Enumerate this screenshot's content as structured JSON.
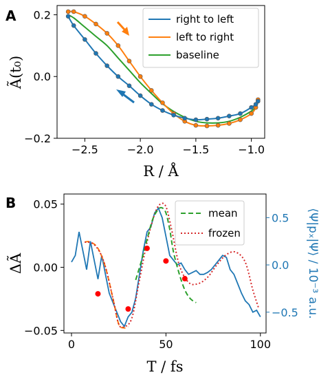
{
  "colors": {
    "blue": "#1f77b4",
    "orange": "#ff7f0e",
    "green": "#2ca02c",
    "red": "#d62728"
  },
  "panel_a": {
    "label": "A",
    "xlabel": "R / Å",
    "ylabel": "Ã(t₀)"
  },
  "panel_b": {
    "label": "B",
    "xlabel": "T / fs",
    "ylabel": "ΔÃ",
    "ylabel_right": "⟨Ψ|pₓ|Ψ⟩ / 10⁻³ a.u."
  },
  "chart_data": [
    {
      "type": "line",
      "panel": "A",
      "xlabel": "R / Å",
      "ylabel": "Ã(t₀)",
      "xlim": [
        -2.75,
        -0.88
      ],
      "ylim": [
        -0.2,
        0.23
      ],
      "xticks": [
        -2.5,
        -2.0,
        -1.5,
        -1.0
      ],
      "xtick_labels": [
        "−2.5",
        "−2.0",
        "−1.5",
        "−1.0"
      ],
      "yticks": [
        -0.2,
        0.0,
        0.2
      ],
      "ytick_labels": [
        "−0.2",
        "0.0",
        "0.2"
      ],
      "grid": false,
      "legend_position": "top-right",
      "series": [
        {
          "name": "right to left",
          "color": "#1f77b4",
          "x": [
            -0.94,
            -0.96,
            -1.0,
            -1.1,
            -1.2,
            -1.3,
            -1.4,
            -1.5,
            -1.6,
            -1.7,
            -1.8,
            -1.9,
            -2.0,
            -2.1,
            -2.2,
            -2.3,
            -2.4,
            -2.5,
            -2.6,
            -2.65
          ],
          "y": [
            -0.08,
            -0.09,
            -0.1,
            -0.12,
            -0.128,
            -0.135,
            -0.138,
            -0.14,
            -0.135,
            -0.125,
            -0.11,
            -0.09,
            -0.062,
            -0.03,
            0.0,
            0.035,
            0.075,
            0.12,
            0.165,
            0.195
          ]
        },
        {
          "name": "left to right",
          "color": "#ff7f0e",
          "x": [
            -2.65,
            -2.6,
            -2.5,
            -2.4,
            -2.3,
            -2.2,
            -2.1,
            -2.0,
            -1.9,
            -1.8,
            -1.7,
            -1.6,
            -1.5,
            -1.4,
            -1.3,
            -1.2,
            -1.1,
            -1.0,
            -0.96,
            -0.94
          ],
          "y": [
            0.21,
            0.21,
            0.195,
            0.17,
            0.14,
            0.1,
            0.05,
            0.0,
            -0.045,
            -0.085,
            -0.12,
            -0.145,
            -0.158,
            -0.16,
            -0.158,
            -0.152,
            -0.14,
            -0.12,
            -0.1,
            -0.075
          ]
        },
        {
          "name": "baseline",
          "color": "#2ca02c",
          "x": [
            -2.65,
            -2.6,
            -2.5,
            -2.4,
            -2.3,
            -2.2,
            -2.1,
            -2.0,
            -1.9,
            -1.8,
            -1.7,
            -1.6,
            -1.5,
            -1.4,
            -1.3,
            -1.2,
            -1.1,
            -1.0,
            -0.96
          ],
          "y": [
            0.2,
            0.19,
            0.16,
            0.13,
            0.1,
            0.06,
            0.02,
            -0.02,
            -0.055,
            -0.088,
            -0.113,
            -0.132,
            -0.145,
            -0.15,
            -0.15,
            -0.145,
            -0.132,
            -0.112,
            -0.1
          ]
        }
      ]
    },
    {
      "type": "line",
      "panel": "B",
      "xlabel": "T / fs",
      "ylabel": "ΔÃ",
      "ylabel_right": "⟨Ψ|pₓ|Ψ⟩ / 10⁻³ a.u.",
      "xlim": [
        -4,
        103
      ],
      "ylim": [
        -0.052,
        0.058
      ],
      "ylim_right": [
        -0.72,
        0.75
      ],
      "xticks": [
        0,
        50,
        100
      ],
      "xtick_labels": [
        "0",
        "50",
        "100"
      ],
      "yticks": [
        -0.05,
        0.0,
        0.05
      ],
      "ytick_labels": [
        "−0.05",
        "0.00",
        "0.05"
      ],
      "yticks_right": [
        -0.5,
        0.0,
        0.5
      ],
      "ytick_labels_right": [
        "−0.5",
        "0.0",
        "0.5"
      ],
      "grid": false,
      "legend_position": "top-right",
      "series": [
        {
          "name": "mean",
          "style": "dashed",
          "color": "#2ca02c",
          "x": [
            34,
            37,
            40,
            43,
            46,
            48,
            50,
            52,
            54,
            57,
            60,
            63,
            66
          ],
          "y": [
            -0.01,
            0.005,
            0.022,
            0.038,
            0.046,
            0.047,
            0.043,
            0.03,
            0.012,
            -0.005,
            -0.018,
            -0.025,
            -0.028
          ]
        },
        {
          "name": "frozen",
          "style": "dotted",
          "color": "#d62728",
          "x": [
            7,
            12,
            17,
            22,
            25,
            28,
            32,
            36,
            40,
            44,
            47,
            50,
            53,
            57,
            62,
            67,
            72,
            77,
            82,
            87,
            92,
            96,
            99
          ],
          "y": [
            0.02,
            0.018,
            0.005,
            -0.025,
            -0.045,
            -0.047,
            -0.04,
            -0.01,
            0.02,
            0.042,
            0.05,
            0.048,
            0.03,
            0.002,
            -0.012,
            -0.013,
            -0.008,
            0.002,
            0.01,
            0.012,
            0.004,
            -0.018,
            -0.032
          ]
        },
        {
          "name": "",
          "style": "dashed",
          "color": "#ff7f0e",
          "x": [
            7,
            10,
            14,
            18,
            22,
            25,
            28,
            30
          ],
          "y": [
            0.02,
            0.02,
            0.015,
            0.0,
            -0.025,
            -0.045,
            -0.048,
            -0.047
          ]
        },
        {
          "name": "",
          "style": "points",
          "color": "#ff0000",
          "x": [
            14,
            30,
            40,
            50,
            60
          ],
          "y": [
            -0.021,
            -0.033,
            0.015,
            0.005,
            -0.009
          ]
        },
        {
          "name": "",
          "style": "solid",
          "axis": "right",
          "color": "#1f77b4",
          "x": [
            0,
            2,
            4,
            6,
            8,
            10,
            12,
            14,
            16,
            18,
            20,
            22,
            24,
            26,
            28,
            30,
            32,
            34,
            36,
            38,
            40,
            42,
            44,
            46,
            48,
            50,
            52,
            54,
            56,
            58,
            60,
            62,
            64,
            66,
            68,
            70,
            72,
            74,
            76,
            78,
            80,
            82,
            84,
            86,
            88,
            90,
            92,
            94,
            96,
            98,
            100
          ],
          "y": [
            0.03,
            0.1,
            0.35,
            0.15,
            -0.05,
            0.25,
            0.05,
            -0.15,
            0.1,
            -0.1,
            -0.3,
            -0.4,
            -0.5,
            -0.6,
            -0.65,
            -0.55,
            -0.5,
            -0.35,
            -0.1,
            0.15,
            0.35,
            0.4,
            0.55,
            0.6,
            0.5,
            0.3,
            0.1,
            0.05,
            0.0,
            0.02,
            -0.05,
            -0.1,
            -0.08,
            -0.06,
            -0.1,
            -0.1,
            -0.08,
            -0.05,
            0.0,
            0.05,
            0.1,
            0.08,
            -0.05,
            -0.1,
            -0.2,
            -0.3,
            -0.38,
            -0.42,
            -0.5,
            -0.48,
            -0.55
          ]
        }
      ]
    }
  ]
}
